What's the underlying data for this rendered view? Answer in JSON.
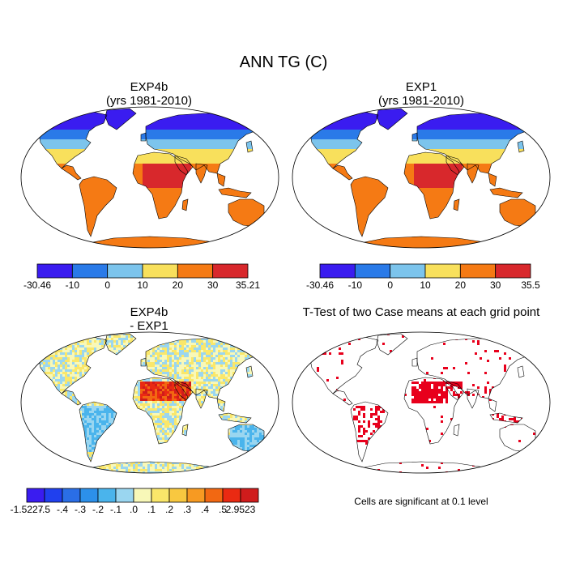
{
  "title": "ANN TG (C)",
  "panels": [
    {
      "title": "EXP4b",
      "subtitle": "(yrs 1981-2010)"
    },
    {
      "title": "EXP1",
      "subtitle": "(yrs 1981-2010)"
    },
    {
      "title": "EXP4b",
      "subtitle": "- EXP1"
    },
    {
      "title": "T-Test of two Case means at each grid point",
      "subtitle": ""
    }
  ],
  "colorbars": [
    {
      "labels": [
        "-30.46",
        "-10",
        "0",
        "10",
        "20",
        "30",
        "35.21"
      ],
      "colors": [
        "#3a1cf0",
        "#2a7ae8",
        "#7cc4ec",
        "#f8e05c",
        "#f57a14",
        "#d8282c"
      ]
    },
    {
      "labels": [
        "-30.46",
        "-10",
        "0",
        "10",
        "20",
        "30",
        "35.5"
      ],
      "colors": [
        "#3a1cf0",
        "#2a7ae8",
        "#7cc4ec",
        "#f8e05c",
        "#f57a14",
        "#d8282c"
      ]
    },
    {
      "labels": [
        "-1.5227",
        "-.5",
        "-.4",
        "-.3",
        "-.2",
        "-.1",
        ".0",
        ".1",
        ".2",
        ".3",
        ".4",
        ".5",
        "2.9523"
      ],
      "colors": [
        "#3a1cf0",
        "#2040ee",
        "#2a6ee6",
        "#2c90ea",
        "#4ab4ec",
        "#9ad6f0",
        "#f8f8b8",
        "#fae76a",
        "#f8c840",
        "#f79a22",
        "#f26812",
        "#ea2a12",
        "#d01c1c"
      ]
    }
  ],
  "significance_note": "Cells are significant at 0.1 level",
  "significance_color": "#e8001c"
}
